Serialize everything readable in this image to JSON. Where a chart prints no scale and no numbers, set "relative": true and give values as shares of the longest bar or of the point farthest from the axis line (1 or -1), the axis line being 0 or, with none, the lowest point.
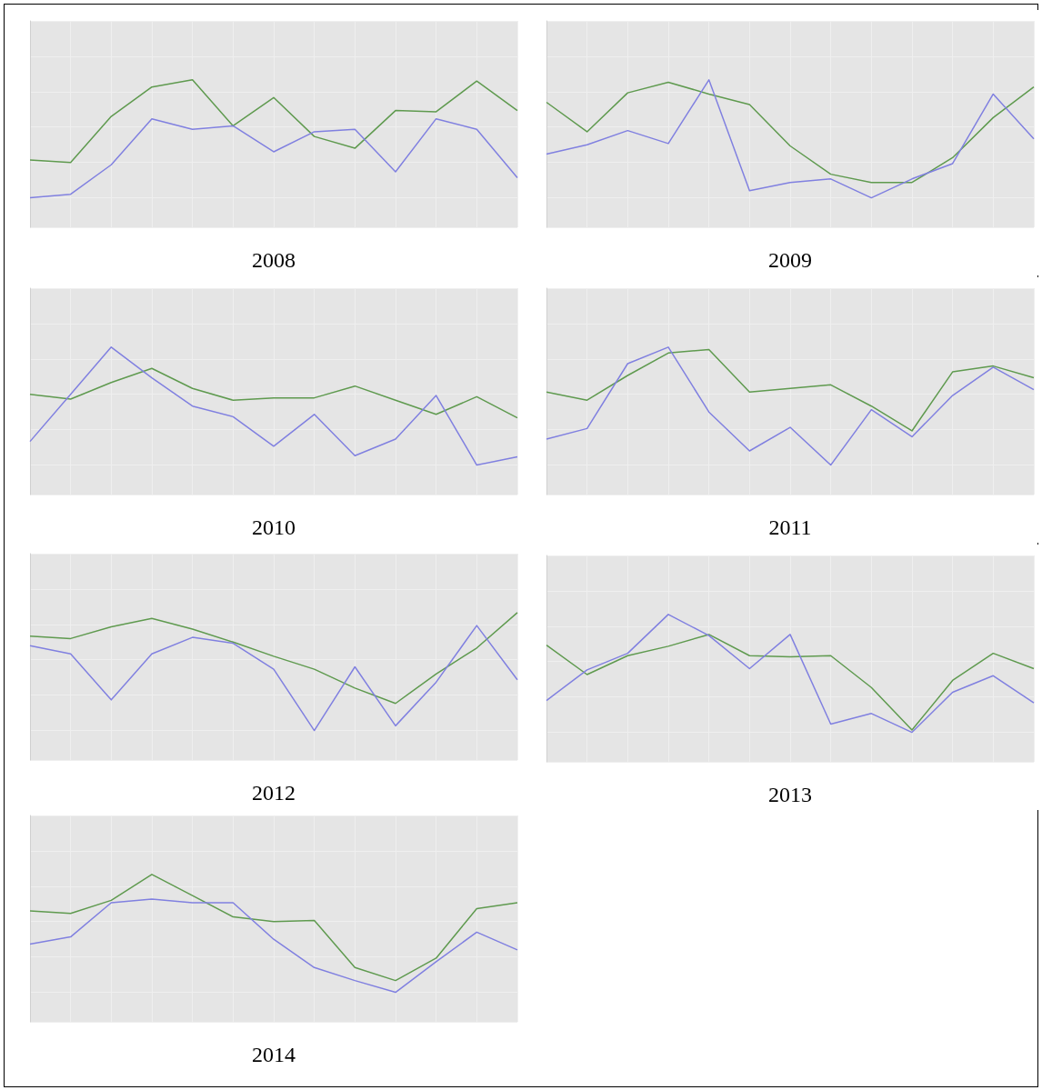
{
  "chart_data": [
    {
      "type": "line",
      "xlabel": "2008",
      "relative": true,
      "grid": true,
      "categories": [
        null,
        null,
        null,
        null,
        null,
        null,
        null,
        null,
        null,
        null,
        null,
        null,
        null
      ],
      "series": [
        {
          "color": "#5f9a4f",
          "values": [
            0.32,
            0.3,
            0.69,
            0.94,
            1,
            0.61,
            0.85,
            0.52,
            0.42,
            0.74,
            0.73,
            0.99,
            0.74
          ]
        },
        {
          "color": "#8080e0",
          "values": [
            0,
            0.03,
            0.28,
            0.67,
            0.58,
            0.61,
            0.39,
            0.56,
            0.58,
            0.22,
            0.67,
            0.58,
            0.17
          ]
        }
      ]
    },
    {
      "type": "line",
      "xlabel": "2009",
      "relative": true,
      "grid": true,
      "categories": [
        null,
        null,
        null,
        null,
        null,
        null,
        null,
        null,
        null,
        null,
        null,
        null,
        null
      ],
      "series": [
        {
          "color": "#5f9a4f",
          "values": [
            0.81,
            0.56,
            0.89,
            0.98,
            0.88,
            0.79,
            0.44,
            0.2,
            0.13,
            0.13,
            0.34,
            0.68,
            0.94
          ]
        },
        {
          "color": "#8080e0",
          "values": [
            0.37,
            0.45,
            0.57,
            0.46,
            1,
            0.06,
            0.13,
            0.16,
            0,
            0.16,
            0.29,
            0.88,
            0.5
          ]
        }
      ]
    },
    {
      "type": "line",
      "xlabel": "2010",
      "relative": true,
      "grid": true,
      "categories": [
        null,
        null,
        null,
        null,
        null,
        null,
        null,
        null,
        null,
        null,
        null,
        null,
        null
      ],
      "series": [
        {
          "color": "#5f9a4f",
          "values": [
            0.6,
            0.56,
            0.7,
            0.82,
            0.65,
            0.55,
            0.57,
            0.57,
            0.67,
            0.55,
            0.43,
            0.58,
            0.4
          ]
        },
        {
          "color": "#8080e0",
          "values": [
            0.2,
            0.6,
            1,
            0.74,
            0.5,
            0.41,
            0.16,
            0.43,
            0.08,
            0.22,
            0.59,
            0,
            0.07
          ]
        }
      ]
    },
    {
      "type": "line",
      "xlabel": "2011",
      "relative": true,
      "grid": true,
      "categories": [
        null,
        null,
        null,
        null,
        null,
        null,
        null,
        null,
        null,
        null,
        null,
        null,
        null
      ],
      "series": [
        {
          "color": "#5f9a4f",
          "values": [
            0.62,
            0.55,
            0.76,
            0.95,
            0.98,
            0.62,
            0.65,
            0.68,
            0.5,
            0.29,
            0.79,
            0.84,
            0.74
          ]
        },
        {
          "color": "#8080e0",
          "values": [
            0.22,
            0.31,
            0.86,
            1,
            0.45,
            0.12,
            0.32,
            0,
            0.47,
            0.24,
            0.59,
            0.83,
            0.64
          ]
        }
      ]
    },
    {
      "type": "line",
      "xlabel": "2012",
      "relative": true,
      "grid": true,
      "categories": [
        null,
        null,
        null,
        null,
        null,
        null,
        null,
        null,
        null,
        null,
        null,
        null,
        null
      ],
      "series": [
        {
          "color": "#5f9a4f",
          "values": [
            0.8,
            0.78,
            0.88,
            0.95,
            0.86,
            0.75,
            0.63,
            0.52,
            0.36,
            0.23,
            0.48,
            0.7,
            1
          ]
        },
        {
          "color": "#8080e0",
          "values": [
            0.72,
            0.65,
            0.26,
            0.65,
            0.79,
            0.74,
            0.52,
            0,
            0.54,
            0.04,
            0.41,
            0.89,
            0.43
          ]
        }
      ]
    },
    {
      "type": "line",
      "xlabel": "2013",
      "relative": true,
      "grid": true,
      "categories": [
        null,
        null,
        null,
        null,
        null,
        null,
        null,
        null,
        null,
        null,
        null,
        null,
        null
      ],
      "series": [
        {
          "color": "#5f9a4f",
          "values": [
            0.74,
            0.49,
            0.65,
            0.73,
            0.83,
            0.65,
            0.64,
            0.65,
            0.38,
            0.02,
            0.44,
            0.67,
            0.54
          ]
        },
        {
          "color": "#8080e0",
          "values": [
            0.27,
            0.53,
            0.67,
            1,
            0.82,
            0.54,
            0.83,
            0.07,
            0.16,
            0,
            0.34,
            0.48,
            0.25
          ]
        }
      ]
    },
    {
      "type": "line",
      "xlabel": "2014",
      "relative": true,
      "grid": true,
      "categories": [
        null,
        null,
        null,
        null,
        null,
        null,
        null,
        null,
        null,
        null,
        null,
        null,
        null
      ],
      "series": [
        {
          "color": "#5f9a4f",
          "values": [
            0.69,
            0.67,
            0.78,
            1,
            0.82,
            0.64,
            0.6,
            0.61,
            0.21,
            0.1,
            0.29,
            0.71,
            0.76
          ]
        },
        {
          "color": "#8080e0",
          "values": [
            0.41,
            0.47,
            0.76,
            0.79,
            0.76,
            0.76,
            0.45,
            0.21,
            0.1,
            0,
            0.26,
            0.51,
            0.36
          ]
        }
      ]
    }
  ]
}
